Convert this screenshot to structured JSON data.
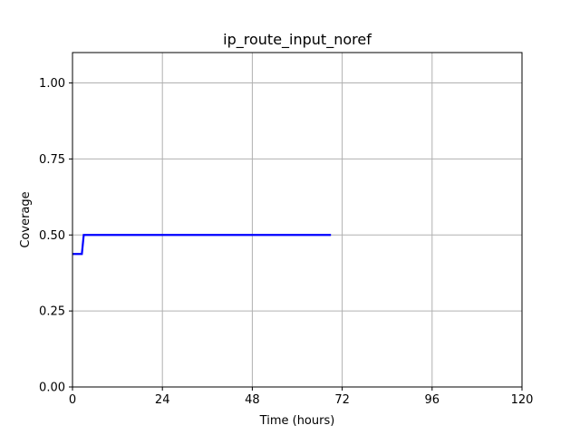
{
  "chart_data": {
    "type": "line",
    "title": "ip_route_input_noref",
    "xlabel": "Time (hours)",
    "ylabel": "Coverage",
    "xlim": [
      0,
      120
    ],
    "ylim": [
      0,
      1.1
    ],
    "xticks": [
      0,
      24,
      48,
      72,
      96,
      120
    ],
    "xtick_labels": [
      "0",
      "24",
      "48",
      "72",
      "96",
      "120"
    ],
    "yticks": [
      0.0,
      0.25,
      0.5,
      0.75,
      1.0
    ],
    "ytick_labels": [
      "0.00",
      "0.25",
      "0.50",
      "0.75",
      "1.00"
    ],
    "grid": true,
    "series": [
      {
        "color": "#0000ff",
        "x": [
          0,
          2.5,
          2.5,
          3.0,
          69
        ],
        "y": [
          0.4375,
          0.4375,
          0.4375,
          0.5,
          0.5
        ]
      }
    ]
  }
}
